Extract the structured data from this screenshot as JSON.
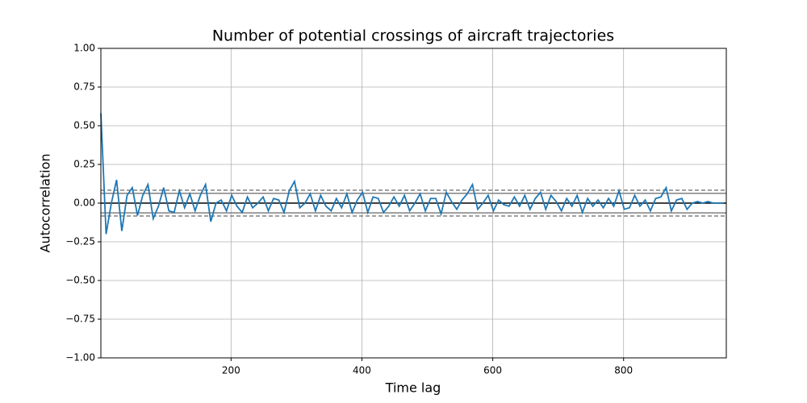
{
  "chart_data": {
    "type": "line",
    "title": "Number of potential crossings of aircraft trajectories",
    "xlabel": "Time lag",
    "ylabel": "Autocorrelation",
    "color": "#1f77b4",
    "grid": true,
    "xlim": [
      1,
      957
    ],
    "ylim": [
      -1,
      1
    ],
    "xticks": [
      200,
      400,
      600,
      800
    ],
    "yticks": [
      {
        "value": -1,
        "label": "−1.00"
      },
      {
        "value": -0.75,
        "label": "−0.75"
      },
      {
        "value": -0.5,
        "label": "−0.50"
      },
      {
        "value": -0.25,
        "label": "−0.25"
      },
      {
        "value": 0,
        "label": "0.00"
      },
      {
        "value": 0.25,
        "label": "0.25"
      },
      {
        "value": 0.5,
        "label": "0.50"
      },
      {
        "value": 0.75,
        "label": "0.75"
      },
      {
        "value": 1,
        "label": "1.00"
      }
    ],
    "hlines": [
      {
        "value": 0,
        "color": "#000000",
        "dashed": false
      },
      {
        "value": 0.0634,
        "color": "#808080",
        "dashed": false
      },
      {
        "value": -0.0634,
        "color": "#808080",
        "dashed": false
      },
      {
        "value": 0.0833,
        "color": "#808080",
        "dashed": true
      },
      {
        "value": -0.0833,
        "color": "#808080",
        "dashed": true
      }
    ],
    "x": [
      1,
      9,
      17,
      25,
      33,
      41,
      49,
      57,
      65,
      73,
      81,
      89,
      97,
      105,
      113,
      121,
      129,
      137,
      145,
      153,
      161,
      169,
      177,
      185,
      193,
      201,
      209,
      217,
      225,
      233,
      241,
      249,
      257,
      265,
      273,
      281,
      289,
      297,
      305,
      313,
      321,
      329,
      337,
      345,
      353,
      361,
      369,
      377,
      385,
      393,
      401,
      409,
      417,
      425,
      433,
      441,
      449,
      457,
      465,
      473,
      481,
      489,
      497,
      505,
      513,
      521,
      529,
      537,
      545,
      553,
      561,
      569,
      577,
      585,
      593,
      601,
      609,
      617,
      625,
      633,
      641,
      649,
      657,
      665,
      673,
      681,
      689,
      697,
      705,
      713,
      721,
      729,
      737,
      745,
      753,
      761,
      769,
      777,
      785,
      793,
      801,
      809,
      817,
      825,
      833,
      841,
      849,
      857,
      865,
      873,
      881,
      889,
      897,
      905,
      913,
      921,
      929,
      937,
      945,
      953
    ],
    "values": [
      0.58,
      -0.2,
      0.0,
      0.15,
      -0.18,
      0.05,
      0.1,
      -0.08,
      0.05,
      0.12,
      -0.1,
      -0.02,
      0.1,
      -0.05,
      -0.06,
      0.08,
      -0.03,
      0.06,
      -0.05,
      0.05,
      0.12,
      -0.12,
      0.0,
      0.02,
      -0.05,
      0.05,
      -0.02,
      -0.06,
      0.04,
      -0.03,
      0.0,
      0.04,
      -0.05,
      0.03,
      0.02,
      -0.06,
      0.08,
      0.14,
      -0.03,
      0.0,
      0.06,
      -0.05,
      0.05,
      -0.02,
      -0.05,
      0.03,
      -0.03,
      0.06,
      -0.06,
      0.02,
      0.07,
      -0.06,
      0.04,
      0.03,
      -0.06,
      -0.02,
      0.04,
      -0.02,
      0.05,
      -0.05,
      0.0,
      0.06,
      -0.05,
      0.03,
      0.03,
      -0.07,
      0.07,
      0.01,
      -0.04,
      0.02,
      0.06,
      0.12,
      -0.04,
      0.0,
      0.05,
      -0.05,
      0.02,
      -0.01,
      -0.02,
      0.04,
      -0.02,
      0.05,
      -0.04,
      0.03,
      0.07,
      -0.04,
      0.05,
      0.01,
      -0.05,
      0.03,
      -0.02,
      0.05,
      -0.06,
      0.03,
      -0.02,
      0.02,
      -0.03,
      0.03,
      -0.02,
      0.08,
      -0.04,
      -0.03,
      0.05,
      -0.02,
      0.02,
      -0.05,
      0.03,
      0.04,
      0.1,
      -0.05,
      0.02,
      0.03,
      -0.04,
      0.0,
      0.01,
      0.0,
      0.01,
      0.0,
      0.0,
      0.0
    ]
  }
}
